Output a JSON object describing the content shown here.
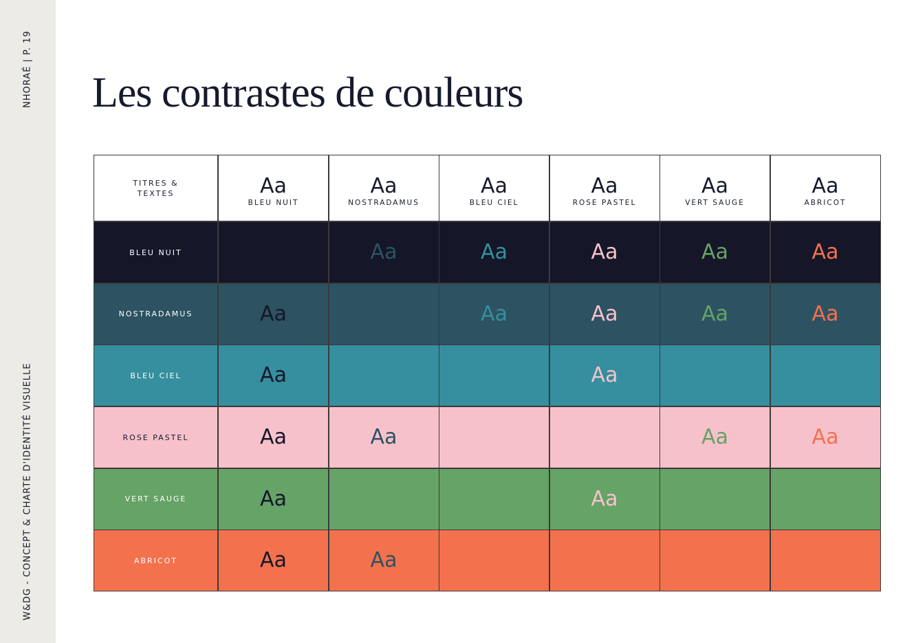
{
  "sidebar": {
    "top": "NHORAÉ | P. 19",
    "bottom": "W&DG - CONCEPT & CHARTE D'IDENTITÉ VISUELLE"
  },
  "title": "Les contrastes de couleurs",
  "table": {
    "corner": [
      "TITRES &",
      "TEXTES"
    ],
    "columns": [
      {
        "sample": "Aa",
        "name": "BLEU NUIT",
        "color": "#151728"
      },
      {
        "sample": "Aa",
        "name": "NOSTRADAMUS",
        "color": "#2d5262"
      },
      {
        "sample": "Aa",
        "name": "BLEU CIEL",
        "color": "#358f9e"
      },
      {
        "sample": "Aa",
        "name": "ROSE PASTEL",
        "color": "#f7c1cb"
      },
      {
        "sample": "Aa",
        "name": "VERT SAUGE",
        "color": "#66a366"
      },
      {
        "sample": "Aa",
        "name": "ABRICOT",
        "color": "#f4714e"
      }
    ],
    "rows": [
      {
        "label": "BLEU NUIT",
        "cells": [
          null,
          "Aa",
          "Aa",
          "Aa",
          "Aa",
          "Aa"
        ]
      },
      {
        "label": "NOSTRADAMUS",
        "cells": [
          "Aa",
          null,
          "Aa",
          "Aa",
          "Aa",
          "Aa"
        ]
      },
      {
        "label": "BLEU CIEL",
        "cells": [
          "Aa",
          null,
          null,
          "Aa",
          null,
          null
        ]
      },
      {
        "label": "ROSE PASTEL",
        "cells": [
          "Aa",
          "Aa",
          null,
          null,
          "Aa",
          "Aa"
        ]
      },
      {
        "label": "VERT SAUGE",
        "cells": [
          "Aa",
          null,
          null,
          "Aa",
          null,
          null
        ]
      },
      {
        "label": "ABRICOT",
        "cells": [
          "Aa",
          "Aa",
          null,
          null,
          null,
          null
        ]
      }
    ]
  }
}
